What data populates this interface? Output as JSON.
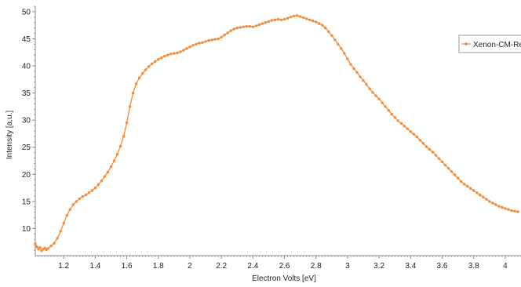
{
  "chart_data": {
    "type": "scatter",
    "xlabel": "Electron Volts [eV]",
    "ylabel": "Intensity [a.u.]",
    "xlim": [
      1.02,
      4.1
    ],
    "ylim": [
      5,
      51
    ],
    "x_ticks": [
      1.2,
      1.4,
      1.6,
      1.8,
      2,
      2.2,
      2.4,
      2.6,
      2.8,
      3,
      3.2,
      3.4,
      3.6,
      3.8,
      4
    ],
    "y_ticks": [
      10,
      15,
      20,
      25,
      30,
      35,
      40,
      45,
      50
    ],
    "grid": false,
    "legend_position": "top-right",
    "colors": {
      "series": "#f28b3c",
      "axis": "#888888",
      "text": "#222222"
    },
    "series": [
      {
        "name": "Xenon-CM-Re",
        "points": [
          [
            1.02,
            7.2
          ],
          [
            1.03,
            6.6
          ],
          [
            1.04,
            6.2
          ],
          [
            1.05,
            6.5
          ],
          [
            1.06,
            5.9
          ],
          [
            1.07,
            6.2
          ],
          [
            1.08,
            6.4
          ],
          [
            1.09,
            6.1
          ],
          [
            1.1,
            6.3
          ],
          [
            1.12,
            6.8
          ],
          [
            1.14,
            7.3
          ],
          [
            1.16,
            8.2
          ],
          [
            1.18,
            9.5
          ],
          [
            1.2,
            11.0
          ],
          [
            1.22,
            12.4
          ],
          [
            1.24,
            13.5
          ],
          [
            1.26,
            14.4
          ],
          [
            1.28,
            15.0
          ],
          [
            1.3,
            15.5
          ],
          [
            1.32,
            15.9
          ],
          [
            1.34,
            16.2
          ],
          [
            1.36,
            16.6
          ],
          [
            1.38,
            17.0
          ],
          [
            1.4,
            17.5
          ],
          [
            1.42,
            18.1
          ],
          [
            1.44,
            18.8
          ],
          [
            1.46,
            19.6
          ],
          [
            1.48,
            20.4
          ],
          [
            1.5,
            21.4
          ],
          [
            1.52,
            22.5
          ],
          [
            1.54,
            23.7
          ],
          [
            1.56,
            25.2
          ],
          [
            1.58,
            27.0
          ],
          [
            1.6,
            29.5
          ],
          [
            1.62,
            32.5
          ],
          [
            1.64,
            35.0
          ],
          [
            1.66,
            36.7
          ],
          [
            1.68,
            37.8
          ],
          [
            1.7,
            38.6
          ],
          [
            1.72,
            39.3
          ],
          [
            1.74,
            39.9
          ],
          [
            1.76,
            40.4
          ],
          [
            1.78,
            40.8
          ],
          [
            1.8,
            41.2
          ],
          [
            1.82,
            41.5
          ],
          [
            1.84,
            41.8
          ],
          [
            1.86,
            42.0
          ],
          [
            1.88,
            42.2
          ],
          [
            1.9,
            42.3
          ],
          [
            1.92,
            42.4
          ],
          [
            1.94,
            42.6
          ],
          [
            1.96,
            42.9
          ],
          [
            1.98,
            43.2
          ],
          [
            2.0,
            43.5
          ],
          [
            2.02,
            43.8
          ],
          [
            2.04,
            44.0
          ],
          [
            2.06,
            44.2
          ],
          [
            2.08,
            44.3
          ],
          [
            2.1,
            44.5
          ],
          [
            2.12,
            44.7
          ],
          [
            2.14,
            44.8
          ],
          [
            2.16,
            44.9
          ],
          [
            2.18,
            45.0
          ],
          [
            2.2,
            45.3
          ],
          [
            2.22,
            45.7
          ],
          [
            2.24,
            46.1
          ],
          [
            2.26,
            46.5
          ],
          [
            2.28,
            46.8
          ],
          [
            2.3,
            47.0
          ],
          [
            2.32,
            47.1
          ],
          [
            2.34,
            47.2
          ],
          [
            2.36,
            47.3
          ],
          [
            2.38,
            47.3
          ],
          [
            2.4,
            47.2
          ],
          [
            2.42,
            47.4
          ],
          [
            2.44,
            47.6
          ],
          [
            2.46,
            47.8
          ],
          [
            2.48,
            48.0
          ],
          [
            2.5,
            48.2
          ],
          [
            2.52,
            48.4
          ],
          [
            2.54,
            48.5
          ],
          [
            2.56,
            48.6
          ],
          [
            2.58,
            48.5
          ],
          [
            2.6,
            48.6
          ],
          [
            2.62,
            48.8
          ],
          [
            2.64,
            49.0
          ],
          [
            2.66,
            49.2
          ],
          [
            2.68,
            49.3
          ],
          [
            2.7,
            49.1
          ],
          [
            2.72,
            48.9
          ],
          [
            2.74,
            48.7
          ],
          [
            2.76,
            48.5
          ],
          [
            2.78,
            48.3
          ],
          [
            2.8,
            48.1
          ],
          [
            2.82,
            47.8
          ],
          [
            2.84,
            47.5
          ],
          [
            2.86,
            47.0
          ],
          [
            2.88,
            46.3
          ],
          [
            2.9,
            45.6
          ],
          [
            2.92,
            44.8
          ],
          [
            2.94,
            44.0
          ],
          [
            2.96,
            43.2
          ],
          [
            2.98,
            42.3
          ],
          [
            3.0,
            41.3
          ],
          [
            3.02,
            40.3
          ],
          [
            3.04,
            39.5
          ],
          [
            3.06,
            38.8
          ],
          [
            3.08,
            38.0
          ],
          [
            3.1,
            37.3
          ],
          [
            3.12,
            36.6
          ],
          [
            3.14,
            35.8
          ],
          [
            3.16,
            35.1
          ],
          [
            3.18,
            34.5
          ],
          [
            3.2,
            33.9
          ],
          [
            3.22,
            33.2
          ],
          [
            3.24,
            32.5
          ],
          [
            3.26,
            31.8
          ],
          [
            3.28,
            31.1
          ],
          [
            3.3,
            30.5
          ],
          [
            3.32,
            29.9
          ],
          [
            3.34,
            29.4
          ],
          [
            3.36,
            28.9
          ],
          [
            3.38,
            28.4
          ],
          [
            3.4,
            27.9
          ],
          [
            3.42,
            27.4
          ],
          [
            3.44,
            26.9
          ],
          [
            3.46,
            26.3
          ],
          [
            3.48,
            25.7
          ],
          [
            3.5,
            25.1
          ],
          [
            3.52,
            24.6
          ],
          [
            3.54,
            24.1
          ],
          [
            3.56,
            23.5
          ],
          [
            3.58,
            22.9
          ],
          [
            3.6,
            22.3
          ],
          [
            3.62,
            21.7
          ],
          [
            3.64,
            21.1
          ],
          [
            3.66,
            20.5
          ],
          [
            3.68,
            19.9
          ],
          [
            3.7,
            19.3
          ],
          [
            3.72,
            18.7
          ],
          [
            3.74,
            18.2
          ],
          [
            3.76,
            17.8
          ],
          [
            3.78,
            17.4
          ],
          [
            3.8,
            17.0
          ],
          [
            3.82,
            16.6
          ],
          [
            3.84,
            16.2
          ],
          [
            3.86,
            15.8
          ],
          [
            3.88,
            15.4
          ],
          [
            3.9,
            15.0
          ],
          [
            3.92,
            14.7
          ],
          [
            3.94,
            14.4
          ],
          [
            3.96,
            14.1
          ],
          [
            3.98,
            13.9
          ],
          [
            4.0,
            13.7
          ],
          [
            4.02,
            13.5
          ],
          [
            4.04,
            13.3
          ],
          [
            4.06,
            13.2
          ],
          [
            4.08,
            13.1
          ]
        ]
      }
    ]
  }
}
